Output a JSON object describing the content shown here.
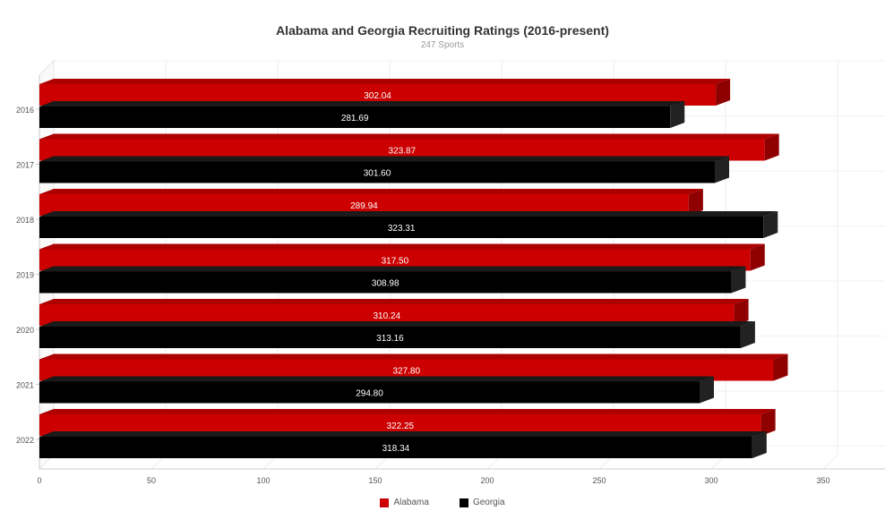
{
  "chart_data": {
    "type": "bar",
    "orientation": "horizontal",
    "three_d": true,
    "title": "Alabama and Georgia Recruiting Ratings (2016-present)",
    "subtitle": "247 Sports",
    "categories": [
      "2016",
      "2017",
      "2018",
      "2019",
      "2020",
      "2021",
      "2022"
    ],
    "series": [
      {
        "name": "Alabama",
        "color": "#cc0000",
        "values": [
          302.04,
          323.87,
          289.94,
          317.5,
          310.24,
          327.8,
          322.25
        ]
      },
      {
        "name": "Georgia",
        "color": "#000000",
        "values": [
          281.69,
          301.6,
          323.31,
          308.98,
          313.16,
          294.8,
          318.34
        ]
      }
    ],
    "value_axis": {
      "min": 0,
      "max": 350,
      "ticks": [
        0,
        50,
        100,
        150,
        200,
        250,
        300,
        350
      ]
    },
    "grid": true,
    "legend_position": "bottom-center",
    "data_labels": true
  }
}
